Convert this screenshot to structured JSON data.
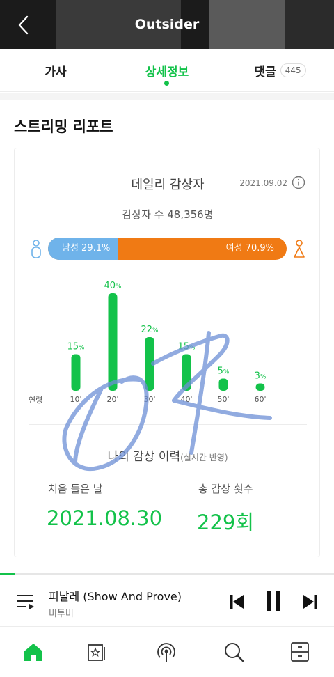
{
  "header": {
    "title": "Outsider"
  },
  "tabs": [
    {
      "label": "가사"
    },
    {
      "label": "상세정보"
    },
    {
      "label": "댓글",
      "count": "445"
    }
  ],
  "section": {
    "title": "스트리밍 리포트"
  },
  "daily": {
    "title": "데일리 감상자",
    "date": "2021.09.02",
    "listeners": "감상자 수 48,356명"
  },
  "gender": {
    "male_label": "남성 29.1%",
    "female_label": "여성 70.9%",
    "male_pct": 29.1,
    "male_color": "#6fb3ea",
    "female_color": "#f07a14"
  },
  "age": {
    "axis_label": "연령"
  },
  "chart_data": {
    "type": "bar",
    "categories": [
      "10'",
      "20'",
      "30'",
      "40'",
      "50'",
      "60'"
    ],
    "values": [
      15,
      40,
      22,
      15,
      5,
      3
    ],
    "value_unit": "%",
    "xlabel": "연령",
    "ylabel": "",
    "ylim": [
      0,
      40
    ],
    "color": "#13c24a",
    "grid": false
  },
  "history": {
    "title": "나의 감상 이력",
    "subtitle": "(실시간 반영)",
    "first_label": "처음 들은 날",
    "first_value": "2021.08.30",
    "count_label": "총 감상 횟수",
    "count_value": "229회"
  },
  "player": {
    "song_title": "피날레 (Show And Prove)",
    "artist": "비투비",
    "progress": 0.045
  },
  "nav": {
    "items": [
      "home-icon",
      "album-icon",
      "podcast-icon",
      "search-icon",
      "library-icon"
    ]
  },
  "accent_color": "#13c24a"
}
